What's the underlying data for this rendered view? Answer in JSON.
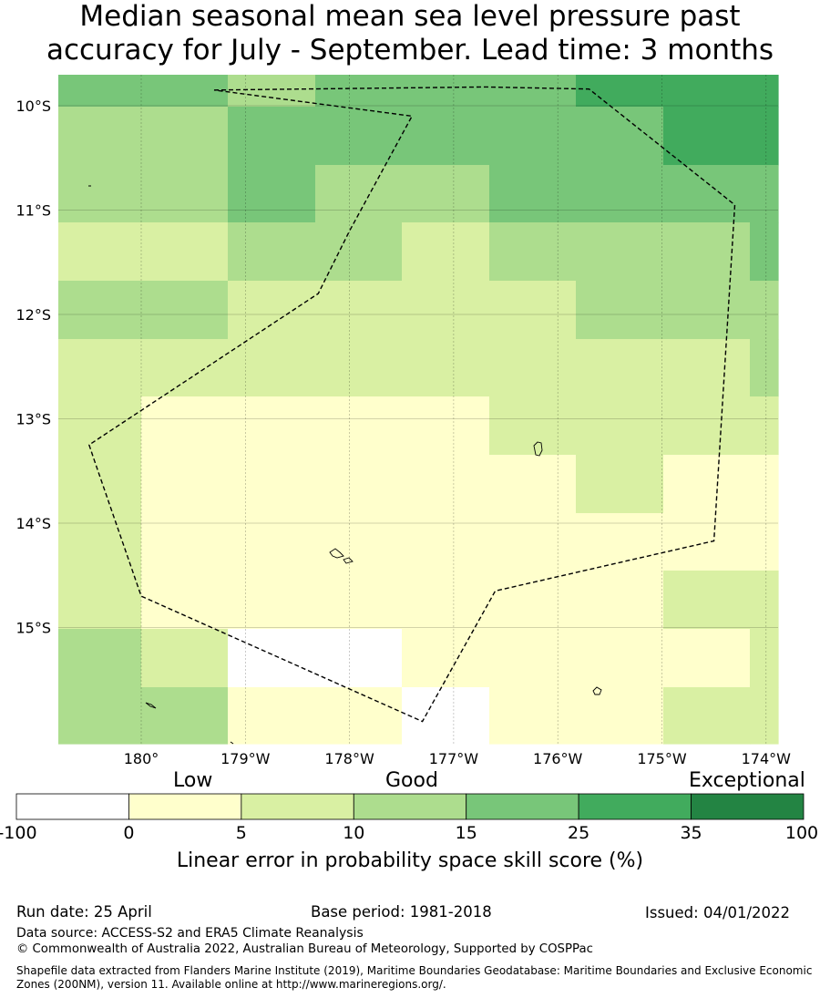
{
  "title_line1": "Median seasonal mean sea level pressure past",
  "title_line2": "accuracy for July - September. Lead time: 3 months",
  "map": {
    "lon_range": [
      179.2,
      185.9
    ],
    "lat_range": [
      -16.0,
      -9.7
    ],
    "lat_ticks": [
      {
        "value": -10,
        "label": "10°S"
      },
      {
        "value": -11,
        "label": "11°S"
      },
      {
        "value": -12,
        "label": "12°S"
      },
      {
        "value": -13,
        "label": "13°S"
      },
      {
        "value": -14,
        "label": "14°S"
      },
      {
        "value": -15,
        "label": "15°S"
      }
    ],
    "lon_ticks": [
      {
        "value": 180,
        "label": "180°"
      },
      {
        "value": 181,
        "label": "179°W"
      },
      {
        "value": 182,
        "label": "178°W"
      },
      {
        "value": 183,
        "label": "177°W"
      },
      {
        "value": 184,
        "label": "176°W"
      },
      {
        "value": 185,
        "label": "175°W"
      },
      {
        "value": 186,
        "label": "174°W"
      }
    ],
    "grid_cols": [
      "64-155",
      "155-250",
      "250-346",
      "346-441",
      "441-537",
      "537-632",
      "632-728",
      "728-823",
      "823-854"
    ],
    "grid_rows": [
      "82-117",
      "117-181",
      "181-244",
      "244-308",
      "308-372",
      "372-435",
      "435-499",
      "499-563",
      "563-626",
      "626-690",
      "690-754",
      "754-816"
    ],
    "cells": [
      [
        4,
        4,
        3,
        4,
        4,
        4,
        5,
        5,
        5
      ],
      [
        3,
        3,
        4,
        4,
        4,
        4,
        4,
        5,
        5
      ],
      [
        3,
        3,
        4,
        3,
        3,
        4,
        4,
        4,
        4
      ],
      [
        2,
        2,
        3,
        3,
        2,
        3,
        3,
        3,
        4
      ],
      [
        3,
        3,
        2,
        2,
        2,
        2,
        3,
        3,
        3
      ],
      [
        2,
        2,
        2,
        2,
        2,
        2,
        2,
        2,
        3
      ],
      [
        2,
        1,
        1,
        1,
        1,
        2,
        2,
        2,
        2
      ],
      [
        2,
        1,
        1,
        1,
        1,
        1,
        2,
        1,
        1
      ],
      [
        2,
        1,
        1,
        1,
        1,
        1,
        1,
        1,
        1
      ],
      [
        2,
        1,
        1,
        1,
        1,
        1,
        1,
        2,
        2
      ],
      [
        3,
        2,
        0,
        0,
        1,
        1,
        1,
        1,
        2
      ],
      [
        3,
        3,
        1,
        1,
        0,
        1,
        1,
        2,
        2
      ]
    ],
    "eez_boundary": [
      [
        180.7,
        -9.85
      ],
      [
        183.3,
        -9.82
      ],
      [
        184.3,
        -9.84
      ],
      [
        185.7,
        -10.95
      ],
      [
        185.5,
        -14.17
      ],
      [
        183.4,
        -14.65
      ],
      [
        182.7,
        -15.9
      ],
      [
        180.0,
        -14.7
      ],
      [
        179.55,
        -13.4
      ],
      [
        179.5,
        -13.25
      ],
      [
        181.7,
        -11.8
      ],
      [
        182.0,
        -11.2
      ],
      [
        182.6,
        -10.1
      ]
    ]
  },
  "colorbar": {
    "category_low": "Low",
    "category_good": "Good",
    "category_exceptional": "Exceptional",
    "colors": [
      "#ffffff",
      "#ffffcc",
      "#d9f0a3",
      "#addd8e",
      "#78c679",
      "#41ab5d",
      "#238443"
    ],
    "tick_labels": [
      "-100",
      "0",
      "5",
      "10",
      "15",
      "25",
      "35",
      "100"
    ],
    "title": "Linear error in probability space skill score (%)"
  },
  "footer": {
    "run_date": "Run date: 25 April",
    "base_period": "Base period: 1981-2018",
    "issued": "Issued: 04/01/2022",
    "data_source": "Data source: ACCESS-S2 and ERA5 Climate Reanalysis",
    "copyright": "© Commonwealth of Australia 2022, Australian Bureau of Meteorology, Supported by COSPPac",
    "shapefile": "Shapefile data extracted from Flanders Marine Institute (2019), Maritime Boundaries Geodatabase: Maritime Boundaries and Exclusive Economic Zones (200NM), version 11. Available online at http://www.marineregions.org/."
  }
}
